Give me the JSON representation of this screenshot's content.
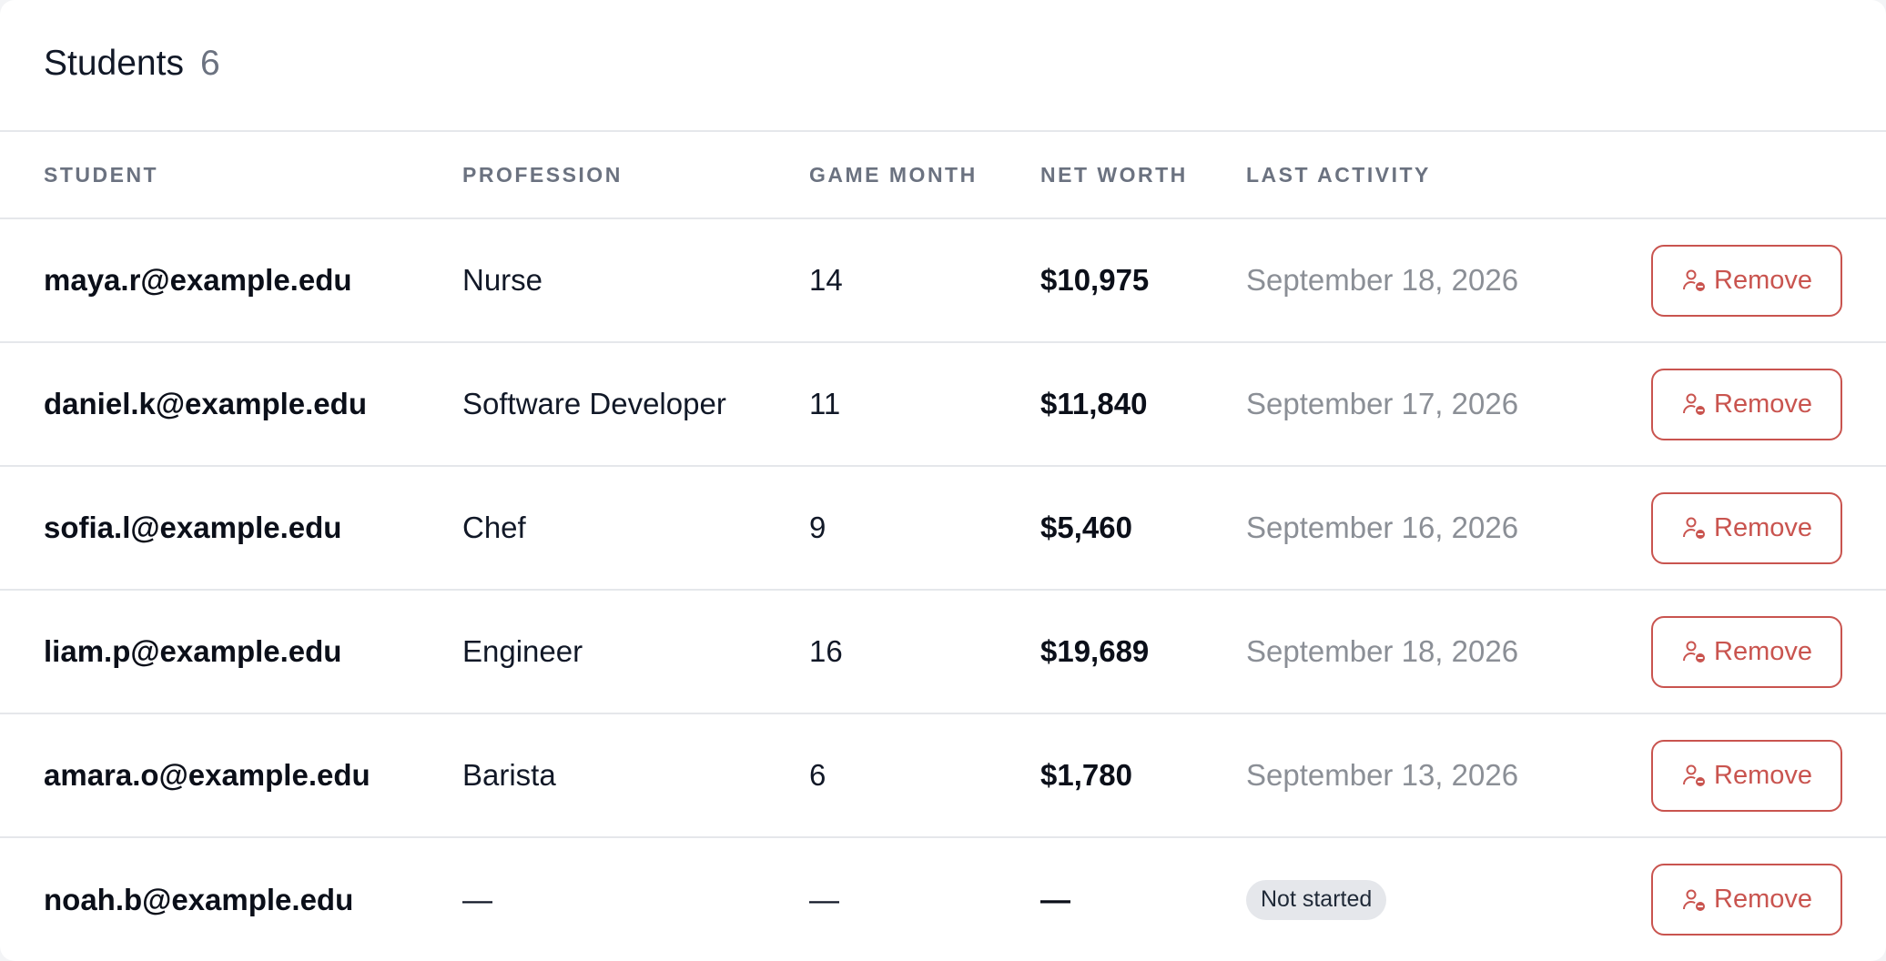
{
  "header": {
    "title": "Students",
    "count": "6"
  },
  "columns": {
    "student": "STUDENT",
    "profession": "PROFESSION",
    "game_month": "GAME MONTH",
    "net_worth": "NET WORTH",
    "last_activity": "LAST ACTIVITY"
  },
  "rows": [
    {
      "email": "maya.r@example.edu",
      "profession": "Nurse",
      "game_month": "14",
      "net_worth": "$10,975",
      "last_activity": "September 18, 2026",
      "remove_label": "Remove"
    },
    {
      "email": "daniel.k@example.edu",
      "profession": "Software Developer",
      "game_month": "11",
      "net_worth": "$11,840",
      "last_activity": "September 17, 2026",
      "remove_label": "Remove"
    },
    {
      "email": "sofia.l@example.edu",
      "profession": "Chef",
      "game_month": "9",
      "net_worth": "$5,460",
      "last_activity": "September 16, 2026",
      "remove_label": "Remove"
    },
    {
      "email": "liam.p@example.edu",
      "profession": "Engineer",
      "game_month": "16",
      "net_worth": "$19,689",
      "last_activity": "September 18, 2026",
      "remove_label": "Remove"
    },
    {
      "email": "amara.o@example.edu",
      "profession": "Barista",
      "game_month": "6",
      "net_worth": "$1,780",
      "last_activity": "September 13, 2026",
      "remove_label": "Remove"
    },
    {
      "email": "noah.b@example.edu",
      "profession": "—",
      "game_month": "—",
      "net_worth": "—",
      "status_badge": "Not started",
      "remove_label": "Remove"
    }
  ],
  "icons": {
    "remove_button_icon": "user-minus-icon"
  },
  "colors": {
    "danger": "#c9544f",
    "badge_bg": "#e5e7eb",
    "muted_text": "#8b8f96",
    "header_text": "#6b7280"
  }
}
